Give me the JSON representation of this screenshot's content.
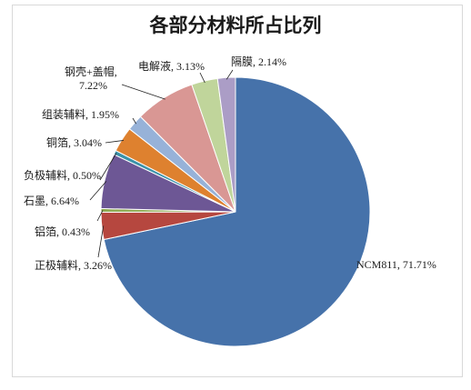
{
  "chart_data": {
    "type": "pie",
    "title": "各部分材料所占比列",
    "slices": [
      {
        "name": "NCM811",
        "value": 71.71,
        "label": "NCM811, 71.71%",
        "color": "#4672aa"
      },
      {
        "name": "正极辅料",
        "value": 3.26,
        "label": "正极辅料, 3.26%",
        "color": "#b6473f"
      },
      {
        "name": "铝箔",
        "value": 0.43,
        "label": "铝箔, 0.43%",
        "color": "#8aa74c"
      },
      {
        "name": "石墨",
        "value": 6.64,
        "label": "石墨, 6.64%",
        "color": "#6d5795"
      },
      {
        "name": "负极辅料",
        "value": 0.5,
        "label": "负极辅料, 0.50%",
        "color": "#3b92a8"
      },
      {
        "name": "铜箔",
        "value": 3.04,
        "label": "铜箔, 3.04%",
        "color": "#de812f"
      },
      {
        "name": "组装辅料",
        "value": 1.95,
        "label": "组装辅料, 1.95%",
        "color": "#97b2d8"
      },
      {
        "name": "钢壳+盖帽",
        "value": 7.22,
        "label": "钢壳+盖帽, 7.22%",
        "color": "#d99794"
      },
      {
        "name": "电解液",
        "value": 3.13,
        "label": "电解液, 3.13%",
        "color": "#c0d59b"
      },
      {
        "name": "隔膜",
        "value": 2.14,
        "label": "隔膜, 2.14%",
        "color": "#ab9dc6"
      }
    ],
    "legend": "none"
  }
}
